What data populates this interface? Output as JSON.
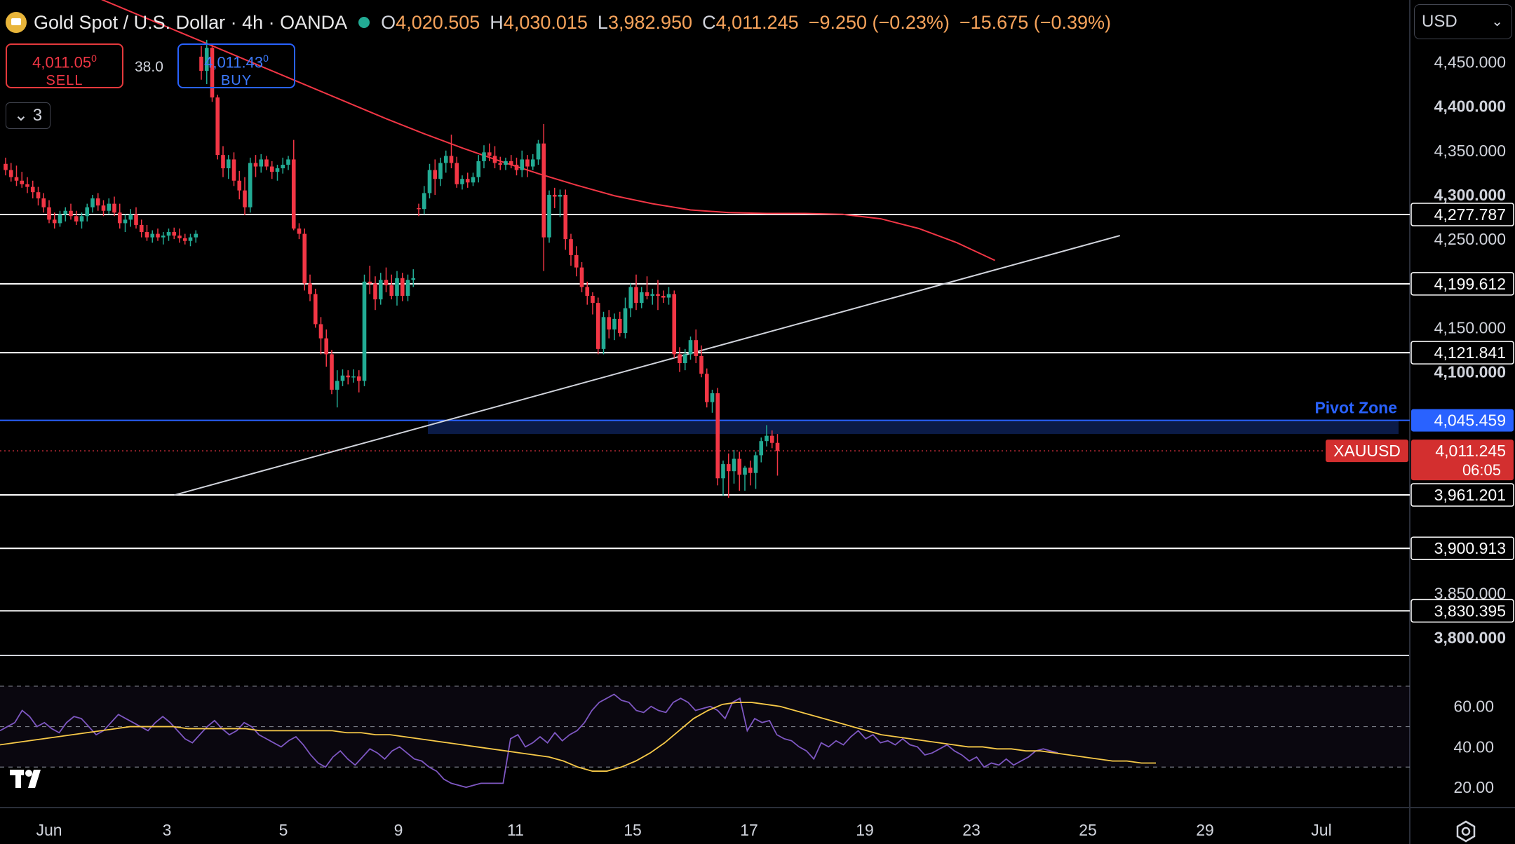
{
  "header": {
    "symbol": "Gold Spot / U.S. Dollar · 4h · OANDA",
    "open_label": "O",
    "open": "4,020.505",
    "high_label": "H",
    "high": "4,030.015",
    "low_label": "L",
    "low": "3,982.950",
    "close_label": "C",
    "close": "4,011.245",
    "change": "−9.250 (−0.23%)",
    "change2": "−15.675 (−0.39%)"
  },
  "trade": {
    "sell_price": "4,011.05",
    "sell_sup": "0",
    "sell_label": "SELL",
    "spread": "38.0",
    "buy_price": "4,011.43",
    "buy_sup": "0",
    "buy_label": "BUY"
  },
  "indicators_count": "3",
  "currency": "USD",
  "colors": {
    "up": "#22ab94",
    "down": "#f23645",
    "ma": "#f23645",
    "rsi": "#7e57c2",
    "rsi_ma": "#f7c948",
    "pivot": "#2962ff",
    "background": "#000000"
  },
  "chart_data": {
    "type": "candlestick",
    "timeframe": "4h",
    "x_ticks": [
      "Jun",
      "3",
      "5",
      "9",
      "11",
      "15",
      "17",
      "19",
      "23",
      "25",
      "29",
      "Jul"
    ],
    "ylim": [
      3780,
      4520
    ],
    "y_ticks": [
      "4,450.000",
      "4,400.000",
      "4,350.000",
      "4,300.000",
      "4,250.000",
      "4,150.000",
      "4,100.000",
      "3,850.000",
      "3,800.000"
    ],
    "candles": [
      {
        "o": 4335,
        "h": 4342,
        "l": 4322,
        "c": 4328
      },
      {
        "o": 4328,
        "h": 4336,
        "l": 4315,
        "c": 4320
      },
      {
        "o": 4320,
        "h": 4333,
        "l": 4310,
        "c": 4316
      },
      {
        "o": 4316,
        "h": 4326,
        "l": 4308,
        "c": 4312
      },
      {
        "o": 4312,
        "h": 4320,
        "l": 4302,
        "c": 4309
      },
      {
        "o": 4309,
        "h": 4316,
        "l": 4296,
        "c": 4303
      },
      {
        "o": 4303,
        "h": 4309,
        "l": 4288,
        "c": 4296
      },
      {
        "o": 4296,
        "h": 4302,
        "l": 4280,
        "c": 4286
      },
      {
        "o": 4286,
        "h": 4294,
        "l": 4268,
        "c": 4272
      },
      {
        "o": 4272,
        "h": 4280,
        "l": 4262,
        "c": 4268
      },
      {
        "o": 4268,
        "h": 4282,
        "l": 4264,
        "c": 4278
      },
      {
        "o": 4278,
        "h": 4286,
        "l": 4270,
        "c": 4282
      },
      {
        "o": 4282,
        "h": 4290,
        "l": 4272,
        "c": 4276
      },
      {
        "o": 4276,
        "h": 4282,
        "l": 4266,
        "c": 4270
      },
      {
        "o": 4270,
        "h": 4280,
        "l": 4262,
        "c": 4276
      },
      {
        "o": 4276,
        "h": 4290,
        "l": 4270,
        "c": 4286
      },
      {
        "o": 4286,
        "h": 4300,
        "l": 4280,
        "c": 4296
      },
      {
        "o": 4296,
        "h": 4302,
        "l": 4282,
        "c": 4288
      },
      {
        "o": 4288,
        "h": 4294,
        "l": 4276,
        "c": 4282
      },
      {
        "o": 4282,
        "h": 4296,
        "l": 4278,
        "c": 4290
      },
      {
        "o": 4290,
        "h": 4298,
        "l": 4276,
        "c": 4280
      },
      {
        "o": 4280,
        "h": 4290,
        "l": 4262,
        "c": 4268
      },
      {
        "o": 4268,
        "h": 4278,
        "l": 4258,
        "c": 4272
      },
      {
        "o": 4272,
        "h": 4284,
        "l": 4264,
        "c": 4278
      },
      {
        "o": 4278,
        "h": 4286,
        "l": 4262,
        "c": 4266
      },
      {
        "o": 4266,
        "h": 4272,
        "l": 4252,
        "c": 4258
      },
      {
        "o": 4258,
        "h": 4266,
        "l": 4248,
        "c": 4252
      },
      {
        "o": 4252,
        "h": 4260,
        "l": 4246,
        "c": 4256
      },
      {
        "o": 4256,
        "h": 4262,
        "l": 4248,
        "c": 4252
      },
      {
        "o": 4252,
        "h": 4258,
        "l": 4244,
        "c": 4254
      },
      {
        "o": 4254,
        "h": 4262,
        "l": 4248,
        "c": 4258
      },
      {
        "o": 4258,
        "h": 4263,
        "l": 4250,
        "c": 4254
      },
      {
        "o": 4254,
        "h": 4262,
        "l": 4246,
        "c": 4251
      },
      {
        "o": 4251,
        "h": 4256,
        "l": 4244,
        "c": 4248
      },
      {
        "o": 4248,
        "h": 4256,
        "l": 4242,
        "c": 4252
      },
      {
        "o": 4252,
        "h": 4260,
        "l": 4246,
        "c": 4256
      },
      {
        "o": 4456,
        "h": 4468,
        "l": 4430,
        "c": 4440
      },
      {
        "o": 4440,
        "h": 4475,
        "l": 4425,
        "c": 4466
      },
      {
        "o": 4466,
        "h": 4470,
        "l": 4405,
        "c": 4410
      },
      {
        "o": 4410,
        "h": 4413,
        "l": 4340,
        "c": 4345
      },
      {
        "o": 4345,
        "h": 4355,
        "l": 4320,
        "c": 4330
      },
      {
        "o": 4330,
        "h": 4345,
        "l": 4318,
        "c": 4340
      },
      {
        "o": 4340,
        "h": 4348,
        "l": 4310,
        "c": 4316
      },
      {
        "o": 4316,
        "h": 4327,
        "l": 4295,
        "c": 4305
      },
      {
        "o": 4305,
        "h": 4320,
        "l": 4277,
        "c": 4286
      },
      {
        "o": 4286,
        "h": 4342,
        "l": 4280,
        "c": 4336
      },
      {
        "o": 4336,
        "h": 4345,
        "l": 4320,
        "c": 4332
      },
      {
        "o": 4332,
        "h": 4346,
        "l": 4325,
        "c": 4340
      },
      {
        "o": 4340,
        "h": 4344,
        "l": 4328,
        "c": 4332
      },
      {
        "o": 4332,
        "h": 4338,
        "l": 4318,
        "c": 4326
      },
      {
        "o": 4326,
        "h": 4334,
        "l": 4316,
        "c": 4330
      },
      {
        "o": 4330,
        "h": 4342,
        "l": 4324,
        "c": 4334
      },
      {
        "o": 4334,
        "h": 4344,
        "l": 4328,
        "c": 4340
      },
      {
        "o": 4340,
        "h": 4362,
        "l": 4260,
        "c": 4262
      },
      {
        "o": 4262,
        "h": 4268,
        "l": 4250,
        "c": 4256
      },
      {
        "o": 4256,
        "h": 4262,
        "l": 4192,
        "c": 4200
      },
      {
        "o": 4200,
        "h": 4210,
        "l": 4180,
        "c": 4188
      },
      {
        "o": 4188,
        "h": 4194,
        "l": 4150,
        "c": 4154
      },
      {
        "o": 4154,
        "h": 4162,
        "l": 4120,
        "c": 4138
      },
      {
        "o": 4138,
        "h": 4148,
        "l": 4106,
        "c": 4120
      },
      {
        "o": 4120,
        "h": 4125,
        "l": 4075,
        "c": 4080
      },
      {
        "o": 4080,
        "h": 4102,
        "l": 4060,
        "c": 4090
      },
      {
        "o": 4090,
        "h": 4103,
        "l": 4084,
        "c": 4096
      },
      {
        "o": 4096,
        "h": 4102,
        "l": 4086,
        "c": 4094
      },
      {
        "o": 4094,
        "h": 4103,
        "l": 4088,
        "c": 4095
      },
      {
        "o": 4095,
        "h": 4102,
        "l": 4077,
        "c": 4090
      },
      {
        "o": 4090,
        "h": 4210,
        "l": 4084,
        "c": 4202
      },
      {
        "o": 4202,
        "h": 4220,
        "l": 4188,
        "c": 4200
      },
      {
        "o": 4200,
        "h": 4208,
        "l": 4170,
        "c": 4182
      },
      {
        "o": 4182,
        "h": 4212,
        "l": 4176,
        "c": 4204
      },
      {
        "o": 4204,
        "h": 4218,
        "l": 4190,
        "c": 4198
      },
      {
        "o": 4198,
        "h": 4210,
        "l": 4182,
        "c": 4186
      },
      {
        "o": 4186,
        "h": 4214,
        "l": 4175,
        "c": 4206
      },
      {
        "o": 4206,
        "h": 4212,
        "l": 4180,
        "c": 4186
      },
      {
        "o": 4186,
        "h": 4210,
        "l": 4180,
        "c": 4204
      },
      {
        "o": 4204,
        "h": 4216,
        "l": 4196,
        "c": 4206
      },
      {
        "o": 4285,
        "h": 4290,
        "l": 4276,
        "c": 4284
      },
      {
        "o": 4284,
        "h": 4310,
        "l": 4278,
        "c": 4302
      },
      {
        "o": 4302,
        "h": 4335,
        "l": 4296,
        "c": 4328
      },
      {
        "o": 4328,
        "h": 4340,
        "l": 4300,
        "c": 4318
      },
      {
        "o": 4318,
        "h": 4342,
        "l": 4310,
        "c": 4336
      },
      {
        "o": 4336,
        "h": 4350,
        "l": 4325,
        "c": 4344
      },
      {
        "o": 4344,
        "h": 4368,
        "l": 4330,
        "c": 4336
      },
      {
        "o": 4336,
        "h": 4343,
        "l": 4308,
        "c": 4312
      },
      {
        "o": 4312,
        "h": 4322,
        "l": 4306,
        "c": 4318
      },
      {
        "o": 4318,
        "h": 4325,
        "l": 4308,
        "c": 4314
      },
      {
        "o": 4314,
        "h": 4325,
        "l": 4310,
        "c": 4320
      },
      {
        "o": 4320,
        "h": 4345,
        "l": 4314,
        "c": 4338
      },
      {
        "o": 4338,
        "h": 4356,
        "l": 4330,
        "c": 4348
      },
      {
        "o": 4348,
        "h": 4358,
        "l": 4338,
        "c": 4344
      },
      {
        "o": 4344,
        "h": 4355,
        "l": 4330,
        "c": 4336
      },
      {
        "o": 4336,
        "h": 4343,
        "l": 4328,
        "c": 4334
      },
      {
        "o": 4334,
        "h": 4342,
        "l": 4328,
        "c": 4338
      },
      {
        "o": 4338,
        "h": 4345,
        "l": 4330,
        "c": 4334
      },
      {
        "o": 4334,
        "h": 4342,
        "l": 4322,
        "c": 4328
      },
      {
        "o": 4328,
        "h": 4350,
        "l": 4320,
        "c": 4340
      },
      {
        "o": 4340,
        "h": 4345,
        "l": 4320,
        "c": 4332
      },
      {
        "o": 4332,
        "h": 4346,
        "l": 4328,
        "c": 4340
      },
      {
        "o": 4340,
        "h": 4362,
        "l": 4334,
        "c": 4358
      },
      {
        "o": 4358,
        "h": 4380,
        "l": 4214,
        "c": 4252
      },
      {
        "o": 4252,
        "h": 4305,
        "l": 4246,
        "c": 4300
      },
      {
        "o": 4300,
        "h": 4308,
        "l": 4285,
        "c": 4298
      },
      {
        "o": 4298,
        "h": 4306,
        "l": 4275,
        "c": 4300
      },
      {
        "o": 4300,
        "h": 4306,
        "l": 4238,
        "c": 4250
      },
      {
        "o": 4250,
        "h": 4256,
        "l": 4220,
        "c": 4232
      },
      {
        "o": 4232,
        "h": 4242,
        "l": 4208,
        "c": 4218
      },
      {
        "o": 4218,
        "h": 4224,
        "l": 4190,
        "c": 4196
      },
      {
        "o": 4196,
        "h": 4202,
        "l": 4176,
        "c": 4186
      },
      {
        "o": 4186,
        "h": 4190,
        "l": 4165,
        "c": 4178
      },
      {
        "o": 4178,
        "h": 4184,
        "l": 4120,
        "c": 4126
      },
      {
        "o": 4126,
        "h": 4168,
        "l": 4120,
        "c": 4162
      },
      {
        "o": 4162,
        "h": 4170,
        "l": 4138,
        "c": 4148
      },
      {
        "o": 4148,
        "h": 4166,
        "l": 4136,
        "c": 4160
      },
      {
        "o": 4160,
        "h": 4168,
        "l": 4140,
        "c": 4144
      },
      {
        "o": 4144,
        "h": 4184,
        "l": 4138,
        "c": 4172
      },
      {
        "o": 4172,
        "h": 4200,
        "l": 4162,
        "c": 4196
      },
      {
        "o": 4196,
        "h": 4210,
        "l": 4170,
        "c": 4178
      },
      {
        "o": 4178,
        "h": 4196,
        "l": 4172,
        "c": 4190
      },
      {
        "o": 4190,
        "h": 4208,
        "l": 4182,
        "c": 4186
      },
      {
        "o": 4186,
        "h": 4194,
        "l": 4176,
        "c": 4188
      },
      {
        "o": 4188,
        "h": 4204,
        "l": 4170,
        "c": 4186
      },
      {
        "o": 4186,
        "h": 4192,
        "l": 4178,
        "c": 4184
      },
      {
        "o": 4184,
        "h": 4196,
        "l": 4176,
        "c": 4188
      },
      {
        "o": 4188,
        "h": 4192,
        "l": 4116,
        "c": 4120
      },
      {
        "o": 4120,
        "h": 4128,
        "l": 4100,
        "c": 4110
      },
      {
        "o": 4110,
        "h": 4126,
        "l": 4102,
        "c": 4120
      },
      {
        "o": 4120,
        "h": 4140,
        "l": 4114,
        "c": 4136
      },
      {
        "o": 4136,
        "h": 4148,
        "l": 4110,
        "c": 4118
      },
      {
        "o": 4118,
        "h": 4130,
        "l": 4094,
        "c": 4098
      },
      {
        "o": 4098,
        "h": 4104,
        "l": 4060,
        "c": 4066
      },
      {
        "o": 4066,
        "h": 4080,
        "l": 4054,
        "c": 4076
      },
      {
        "o": 4076,
        "h": 4082,
        "l": 3972,
        "c": 3980
      },
      {
        "o": 3980,
        "h": 4000,
        "l": 3960,
        "c": 3996
      },
      {
        "o": 3996,
        "h": 4008,
        "l": 3958,
        "c": 3988
      },
      {
        "o": 3988,
        "h": 4012,
        "l": 3974,
        "c": 4002
      },
      {
        "o": 4002,
        "h": 4010,
        "l": 3966,
        "c": 3984
      },
      {
        "o": 3984,
        "h": 3994,
        "l": 3966,
        "c": 3992
      },
      {
        "o": 3992,
        "h": 4000,
        "l": 3972,
        "c": 3986
      },
      {
        "o": 3986,
        "h": 4010,
        "l": 3968,
        "c": 4006
      },
      {
        "o": 4006,
        "h": 4026,
        "l": 3998,
        "c": 4022
      },
      {
        "o": 4022,
        "h": 4040,
        "l": 4016,
        "c": 4028
      },
      {
        "o": 4028,
        "h": 4034,
        "l": 4014,
        "c": 4020
      },
      {
        "o": 4020,
        "h": 4030,
        "l": 3983,
        "c": 4011
      }
    ],
    "moving_average": [
      4568,
      4548,
      4530,
      4512,
      4494,
      4476,
      4458,
      4440,
      4422,
      4404,
      4386,
      4369,
      4353,
      4338,
      4324,
      4311,
      4299,
      4290,
      4283,
      4280,
      4279,
      4279,
      4278,
      4273,
      4262,
      4246,
      4226
    ],
    "ma_x": [
      0,
      7,
      14,
      21,
      28,
      35,
      42,
      49,
      56,
      63,
      70,
      77,
      84,
      91,
      98,
      105,
      112,
      119,
      126,
      133,
      140,
      147,
      154,
      161,
      168,
      175,
      182
    ],
    "horizontal_levels": [
      4277.787,
      4199.612,
      4121.841,
      3961.201,
      3900.913,
      3830.395
    ],
    "level_labels": [
      "4,277.787",
      "4,199.612",
      "4,121.841",
      "3,961.201",
      "3,900.913",
      "3,830.395"
    ],
    "pivot_zone": {
      "label": "Pivot Zone",
      "value": "4,045.459",
      "top": 4045.459,
      "bottom": 4030
    },
    "trendline": {
      "start": {
        "candle": 31,
        "price": 3961
      },
      "end": {
        "candle": 205,
        "price": 4254
      }
    },
    "current": {
      "symbol": "XAUUSD",
      "price": "4,011.245",
      "countdown": "06:05"
    },
    "rsi": {
      "ylim": [
        10,
        80
      ],
      "y_ticks": [
        "60.00",
        "40.00",
        "20.00"
      ],
      "levels": [
        70,
        50,
        30
      ],
      "values": [
        48,
        50,
        52,
        58,
        55,
        50,
        52,
        49,
        47,
        52,
        55,
        54,
        50,
        46,
        48,
        52,
        56,
        54,
        52,
        50,
        48,
        52,
        55,
        52,
        48,
        44,
        42,
        46,
        50,
        53,
        49,
        46,
        48,
        52,
        50,
        46,
        44,
        42,
        40,
        43,
        45,
        41,
        36,
        32,
        30,
        35,
        38,
        34,
        31,
        35,
        39,
        37,
        34,
        38,
        40,
        37,
        34,
        33,
        30,
        28,
        24,
        22,
        21,
        20,
        21,
        22,
        22,
        22,
        22,
        44,
        46,
        40,
        42,
        45,
        42,
        47,
        43,
        46,
        48,
        52,
        58,
        62,
        64,
        66,
        63,
        62,
        58,
        57,
        60,
        58,
        57,
        62,
        64,
        62,
        58,
        59,
        60,
        58,
        54,
        62,
        64,
        48,
        54,
        52,
        53,
        46,
        44,
        43,
        40,
        38,
        34,
        42,
        40,
        43,
        41,
        45,
        48,
        44,
        46,
        42,
        43,
        41,
        44,
        41,
        40,
        36,
        37,
        39,
        41,
        38,
        36,
        33,
        35,
        30,
        32,
        31,
        34,
        31,
        33,
        35,
        38,
        39,
        38,
        37
      ],
      "ma": [
        41,
        42,
        43,
        44,
        45,
        46,
        47,
        48,
        49,
        50,
        50,
        50,
        50,
        49,
        49,
        49,
        49,
        49,
        48,
        48,
        48,
        48,
        48,
        48,
        47,
        47,
        46,
        46,
        45,
        44,
        43,
        42,
        41,
        40,
        39,
        38,
        37,
        36,
        35,
        33,
        30,
        28,
        28,
        30,
        33,
        37,
        42,
        48,
        54,
        58,
        61,
        62,
        62,
        61,
        60,
        58,
        56,
        54,
        52,
        50,
        48,
        46,
        45,
        44,
        43,
        42,
        41,
        40,
        40,
        39,
        39,
        38,
        38,
        37,
        36,
        35,
        34,
        33,
        33,
        32,
        32
      ]
    }
  }
}
